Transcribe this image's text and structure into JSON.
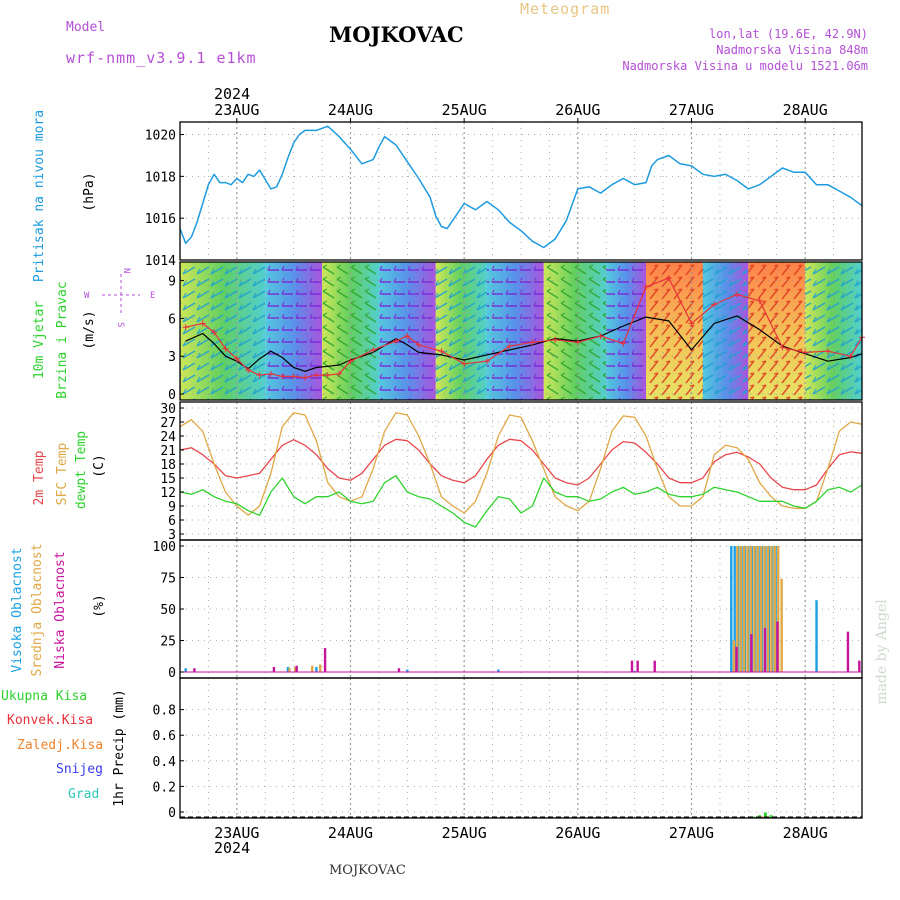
{
  "header": {
    "model_label": "Model",
    "model_name": "wrf-nmm_v3.9.1 e1km",
    "station": "MOJKOVAC",
    "meteogram_label": "Meteogram",
    "lonlat": "lon,lat (19.6E, 42.9N)",
    "elevation": "Nadmorska Visina 848m",
    "model_elevation": "Nadmorska Visina u modelu 1521.06m",
    "year": "2024",
    "footer_station": "MOJKOVAC",
    "watermark": "made by Angel"
  },
  "colors": {
    "pressure": "#1e9be0",
    "wind_speed_black": "#000000",
    "wind_gust_red": "#e8323c",
    "temp_2m": "#e8464b",
    "temp_sfc": "#e0a845",
    "dewpoint": "#2ed32e",
    "cloud_high": "#1aa0e6",
    "cloud_mid": "#e0a845",
    "cloud_low": "#c8139c",
    "label_purple": "#b44fd6"
  },
  "date_ticks": [
    "23AUG",
    "24AUG",
    "25AUG",
    "26AUG",
    "27AUG",
    "28AUG"
  ],
  "chart_data": [
    {
      "type": "line",
      "panel": "pressure",
      "ylabel_main": "Pritisak na nivou mora",
      "ylabel_unit": "(hPa)",
      "ylim": [
        1014,
        1020.6
      ],
      "yticks": [
        1014,
        1016,
        1018,
        1020
      ],
      "x_start_day": 22.5,
      "x_end_day": 28.5,
      "grid": true,
      "series": [
        {
          "color_key": "pressure",
          "x": [
            22.5,
            22.55,
            22.6,
            22.65,
            22.7,
            22.75,
            22.8,
            22.85,
            22.9,
            22.95,
            23.0,
            23.05,
            23.1,
            23.15,
            23.2,
            23.3,
            23.35,
            23.4,
            23.45,
            23.5,
            23.55,
            23.6,
            23.7,
            23.8,
            23.9,
            24.0,
            24.1,
            24.2,
            24.25,
            24.3,
            24.4,
            24.5,
            24.6,
            24.7,
            24.75,
            24.8,
            24.85,
            24.9,
            25.0,
            25.1,
            25.2,
            25.3,
            25.4,
            25.5,
            25.6,
            25.7,
            25.8,
            25.9,
            26.0,
            26.1,
            26.2,
            26.3,
            26.4,
            26.5,
            26.6,
            26.65,
            26.7,
            26.8,
            26.9,
            27.0,
            27.1,
            27.2,
            27.3,
            27.4,
            27.5,
            27.6,
            27.7,
            27.8,
            27.9,
            28.0,
            28.1,
            28.2,
            28.3,
            28.4,
            28.5
          ],
          "y": [
            1015.5,
            1014.8,
            1015.1,
            1015.8,
            1016.7,
            1017.6,
            1018.1,
            1017.7,
            1017.7,
            1017.6,
            1017.9,
            1017.7,
            1018.1,
            1018.0,
            1018.3,
            1017.4,
            1017.5,
            1018.1,
            1018.9,
            1019.6,
            1020.0,
            1020.2,
            1020.2,
            1020.4,
            1019.9,
            1019.3,
            1018.6,
            1018.8,
            1019.4,
            1019.9,
            1019.5,
            1018.7,
            1017.9,
            1017.0,
            1016.1,
            1015.6,
            1015.5,
            1015.9,
            1016.7,
            1016.4,
            1016.8,
            1016.4,
            1015.8,
            1015.4,
            1014.9,
            1014.6,
            1015.0,
            1015.9,
            1017.4,
            1017.5,
            1017.2,
            1017.6,
            1017.9,
            1017.6,
            1017.7,
            1018.5,
            1018.8,
            1019.0,
            1018.6,
            1018.5,
            1018.1,
            1018.0,
            1018.1,
            1017.8,
            1017.4,
            1017.6,
            1018.0,
            1018.4,
            1018.2,
            1018.2,
            1017.6,
            1017.6,
            1017.3,
            1017.0,
            1016.6
          ]
        }
      ]
    },
    {
      "type": "line",
      "panel": "wind",
      "ylabel_main": "10m Vjetar",
      "ylabel_sub": "Brzina i Pravac",
      "ylabel_unit": "(m/s)",
      "compass": {
        "n": "N",
        "s": "S",
        "e": "E",
        "w": "W"
      },
      "ylim": [
        0,
        10
      ],
      "yticks": [
        0,
        3,
        6,
        9
      ],
      "grid": true,
      "series": [
        {
          "color_key": "wind_speed_black",
          "x": [
            22.55,
            22.7,
            22.8,
            22.9,
            23.0,
            23.1,
            23.2,
            23.3,
            23.4,
            23.5,
            23.6,
            23.7,
            23.8,
            23.9,
            24.0,
            24.2,
            24.4,
            24.5,
            24.6,
            24.8,
            25.0,
            25.2,
            25.4,
            25.6,
            25.8,
            26.0,
            26.2,
            26.4,
            26.6,
            26.8,
            27.0,
            27.2,
            27.4,
            27.6,
            27.8,
            28.0,
            28.2,
            28.4,
            28.5
          ],
          "y": [
            4.2,
            4.8,
            4.0,
            3.0,
            2.6,
            2.0,
            2.8,
            3.4,
            2.9,
            2.1,
            1.8,
            2.1,
            2.2,
            2.3,
            2.7,
            3.3,
            4.4,
            3.9,
            3.3,
            3.1,
            2.7,
            3.1,
            3.5,
            3.9,
            4.4,
            4.2,
            4.6,
            5.4,
            6.1,
            5.8,
            3.5,
            5.6,
            6.2,
            5.1,
            3.8,
            3.2,
            2.6,
            2.9,
            3.2
          ]
        },
        {
          "color_key": "wind_gust_red",
          "x": [
            22.55,
            22.7,
            22.8,
            22.9,
            23.0,
            23.1,
            23.2,
            23.3,
            23.4,
            23.5,
            23.6,
            23.7,
            23.8,
            23.9,
            24.0,
            24.2,
            24.4,
            24.5,
            24.6,
            24.8,
            25.0,
            25.2,
            25.4,
            25.6,
            25.8,
            26.0,
            26.2,
            26.4,
            26.6,
            26.8,
            27.0,
            27.2,
            27.4,
            27.6,
            27.8,
            28.0,
            28.2,
            28.4,
            28.5
          ],
          "y": [
            5.3,
            5.6,
            4.9,
            3.6,
            2.8,
            1.9,
            1.5,
            1.6,
            1.4,
            1.4,
            1.3,
            1.5,
            1.5,
            1.6,
            2.6,
            3.5,
            4.2,
            4.6,
            3.9,
            3.4,
            2.4,
            2.6,
            3.8,
            4.1,
            4.3,
            4.1,
            4.6,
            4.0,
            8.5,
            9.2,
            5.6,
            7.1,
            7.9,
            7.4,
            3.7,
            3.3,
            3.4,
            3.0,
            4.5
          ]
        }
      ]
    },
    {
      "type": "line",
      "panel": "temperature",
      "ylabel_parts": [
        "2m Temp",
        "SFC Temp",
        "dewpt Temp"
      ],
      "ylabel_unit": "(C)",
      "ylim": [
        3,
        30
      ],
      "yticks": [
        3,
        6,
        9,
        12,
        15,
        18,
        21,
        24,
        27,
        30
      ],
      "grid": true,
      "series": [
        {
          "name": "2m Temp",
          "color_key": "temp_2m",
          "x": [
            22.5,
            22.6,
            22.7,
            22.8,
            22.9,
            23.0,
            23.1,
            23.2,
            23.3,
            23.4,
            23.5,
            23.6,
            23.7,
            23.8,
            23.9,
            24.0,
            24.1,
            24.2,
            24.3,
            24.4,
            24.5,
            24.6,
            24.7,
            24.8,
            24.9,
            25.0,
            25.1,
            25.2,
            25.3,
            25.4,
            25.5,
            25.6,
            25.7,
            25.8,
            25.9,
            26.0,
            26.1,
            26.2,
            26.3,
            26.4,
            26.5,
            26.6,
            26.7,
            26.8,
            26.9,
            27.0,
            27.1,
            27.2,
            27.3,
            27.4,
            27.5,
            27.6,
            27.7,
            27.8,
            27.9,
            28.0,
            28.1,
            28.2,
            28.3,
            28.4,
            28.5
          ],
          "y": [
            21,
            21.5,
            20,
            18,
            15.5,
            15,
            15.5,
            16,
            19,
            22,
            23.2,
            22,
            20,
            17,
            15,
            14.5,
            16,
            19,
            22,
            23.3,
            23,
            21,
            18,
            15.5,
            14.5,
            14,
            15.5,
            19,
            22,
            23.3,
            23,
            21,
            18,
            15,
            14,
            13.5,
            15,
            18,
            21,
            22.8,
            22.5,
            20.5,
            18,
            15,
            14,
            14,
            15,
            18.5,
            20,
            20.5,
            19.5,
            18,
            15,
            13,
            12.5,
            12.5,
            13.5,
            17,
            20,
            20.6,
            20.3
          ]
        },
        {
          "name": "SFC Temp",
          "color_key": "temp_sfc",
          "x": [
            22.5,
            22.6,
            22.7,
            22.8,
            22.9,
            23.0,
            23.1,
            23.2,
            23.3,
            23.4,
            23.5,
            23.6,
            23.7,
            23.8,
            23.9,
            24.0,
            24.1,
            24.2,
            24.3,
            24.4,
            24.5,
            24.6,
            24.7,
            24.8,
            24.9,
            25.0,
            25.1,
            25.2,
            25.3,
            25.4,
            25.5,
            25.6,
            25.7,
            25.8,
            25.9,
            26.0,
            26.1,
            26.2,
            26.3,
            26.4,
            26.5,
            26.6,
            26.7,
            26.8,
            26.9,
            27.0,
            27.1,
            27.2,
            27.3,
            27.4,
            27.5,
            27.6,
            27.7,
            27.8,
            27.9,
            28.0,
            28.1,
            28.2,
            28.3,
            28.4,
            28.5
          ],
          "y": [
            26,
            27.5,
            25,
            18,
            12,
            9,
            7,
            9,
            16,
            26,
            29,
            28.5,
            23,
            14,
            11,
            10,
            11,
            17,
            25,
            29,
            28.5,
            24,
            18,
            11,
            9,
            7.5,
            10,
            16,
            24,
            28.5,
            28,
            23,
            17,
            11,
            9,
            8,
            10,
            17,
            25,
            28.3,
            28,
            24,
            17,
            11,
            9,
            9,
            11,
            20,
            22,
            21.5,
            19,
            14,
            11,
            9,
            8.5,
            8.5,
            10,
            17,
            25,
            27,
            26.5
          ]
        },
        {
          "name": "dewpt Temp",
          "color_key": "dewpoint",
          "x": [
            22.5,
            22.6,
            22.7,
            22.8,
            22.9,
            23.0,
            23.1,
            23.2,
            23.3,
            23.4,
            23.5,
            23.6,
            23.7,
            23.8,
            23.9,
            24.0,
            24.1,
            24.2,
            24.3,
            24.4,
            24.5,
            24.6,
            24.7,
            24.8,
            24.9,
            25.0,
            25.1,
            25.2,
            25.3,
            25.4,
            25.5,
            25.6,
            25.7,
            25.8,
            25.9,
            26.0,
            26.1,
            26.2,
            26.3,
            26.4,
            26.5,
            26.6,
            26.7,
            26.8,
            26.9,
            27.0,
            27.1,
            27.2,
            27.3,
            27.4,
            27.5,
            27.6,
            27.7,
            27.8,
            27.9,
            28.0,
            28.1,
            28.2,
            28.3,
            28.4,
            28.5
          ],
          "y": [
            12,
            11.5,
            12.5,
            11,
            10,
            9.5,
            8,
            7,
            12,
            15,
            11,
            9.5,
            11,
            11,
            12,
            10,
            9.5,
            10,
            14,
            15.5,
            12,
            11,
            10.5,
            9,
            7.5,
            5.5,
            4.5,
            8,
            11,
            10.5,
            7.5,
            9,
            15,
            12,
            11,
            11,
            10,
            10.5,
            12,
            13,
            11.5,
            12,
            13,
            11.5,
            11,
            11,
            11.5,
            13,
            12.5,
            12,
            11,
            10,
            10,
            10,
            9,
            8.5,
            10,
            12.5,
            13,
            12,
            13.5
          ]
        }
      ]
    },
    {
      "type": "bar",
      "panel": "clouds",
      "ylabel_parts": [
        "Visoka Oblacnost",
        "Srednja Oblacnost",
        "Niska Oblacnost"
      ],
      "ylabel_unit": "(%)",
      "ylim": [
        0,
        100
      ],
      "yticks": [
        0,
        25,
        50,
        75,
        100
      ],
      "grid": true,
      "series": [
        {
          "name": "Visoka Oblacnost",
          "color_key": "cloud_high",
          "x": [
            22.55,
            23.45,
            23.7,
            24.5,
            25.3,
            26.5,
            27.35,
            27.38,
            27.41,
            27.44,
            27.47,
            27.5,
            27.53,
            27.56,
            27.59,
            27.62,
            27.65,
            27.68,
            27.71,
            27.74,
            28.1
          ],
          "y": [
            3,
            4,
            4,
            2,
            2,
            1,
            100,
            100,
            100,
            100,
            100,
            100,
            100,
            100,
            100,
            100,
            100,
            100,
            100,
            100,
            57
          ]
        },
        {
          "name": "Srednja Oblacnost",
          "color_key": "cloud_mid",
          "x": [
            23.45,
            23.5,
            23.65,
            23.72,
            27.36,
            27.39,
            27.42,
            27.45,
            27.48,
            27.51,
            27.54,
            27.57,
            27.6,
            27.63,
            27.66,
            27.69,
            27.72,
            27.75,
            27.78
          ],
          "y": [
            3,
            4,
            5,
            6,
            25,
            100,
            100,
            100,
            100,
            100,
            100,
            100,
            100,
            100,
            100,
            100,
            100,
            100,
            74
          ]
        },
        {
          "name": "Niska Oblacnost",
          "color_key": "cloud_low",
          "x": [
            22.6,
            23.3,
            23.5,
            23.75,
            24.4,
            26.45,
            26.5,
            26.65,
            27.37,
            27.5,
            27.62,
            27.73,
            28.35,
            28.45
          ],
          "y": [
            3,
            4,
            5,
            19,
            3,
            9,
            9,
            9,
            20,
            30,
            35,
            40,
            32,
            9
          ]
        }
      ]
    },
    {
      "type": "bar",
      "panel": "precip",
      "ylabel_unit": "1hr Precip (mm)",
      "legend": [
        "Ukupna Kisa",
        "Konvek.Kisa",
        "Zaledj.Kisa",
        "Snijeg",
        "Grad"
      ],
      "legend_colors": [
        "#2ed32e",
        "#e8323c",
        "#f0842c",
        "#3c3cf0",
        "#2ec8b8"
      ],
      "ylim": [
        0,
        1
      ],
      "yticks": [
        0,
        0.2,
        0.4,
        0.6,
        0.8
      ],
      "grid": true,
      "series": [
        {
          "name": "Ukupna Kisa",
          "color_key": "dewpoint",
          "x": [
            27.55,
            27.6,
            27.65,
            27.7
          ],
          "y": [
            0.01,
            0.02,
            0.04,
            0.02
          ]
        },
        {
          "name": "Konvek.Kisa",
          "color_key": "wind_gust_red",
          "x": [
            27.52,
            27.62
          ],
          "y": [
            0.01,
            0.01
          ]
        }
      ]
    }
  ]
}
